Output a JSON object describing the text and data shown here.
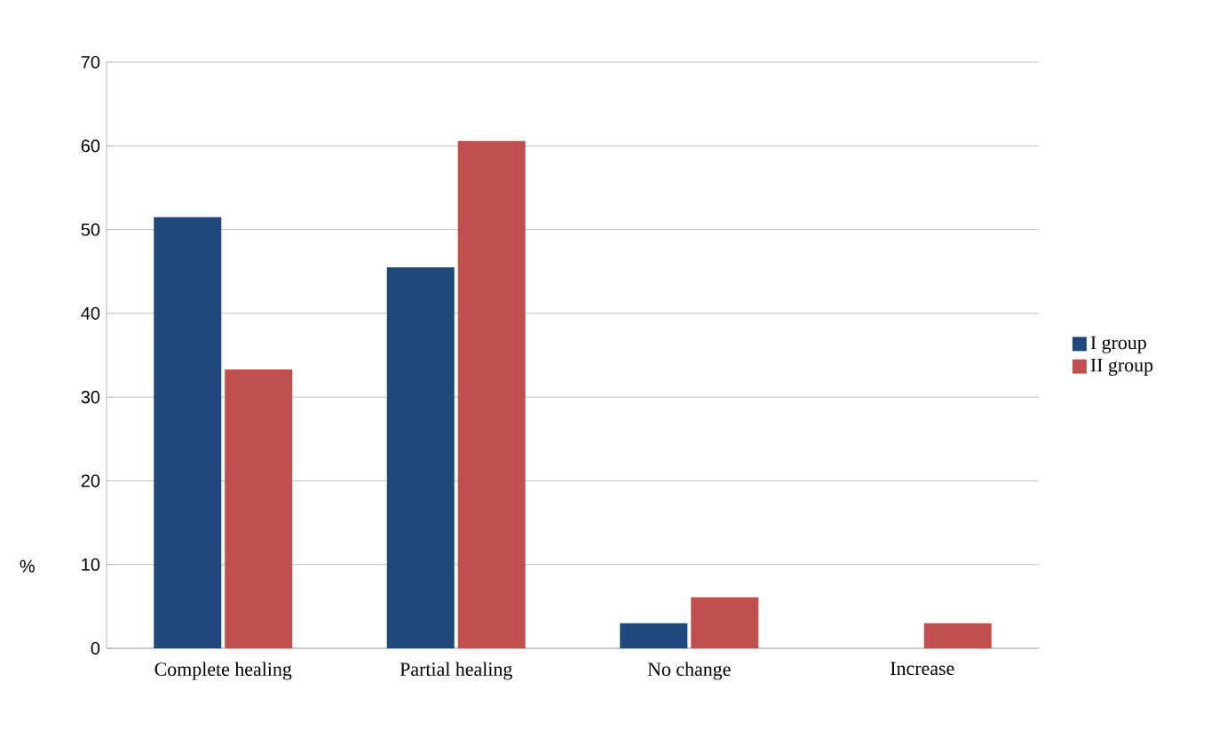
{
  "chart_data": {
    "type": "bar",
    "ylabel": "%",
    "categories": [
      "Complete healing",
      "Partial  healing",
      "No change",
      "Increase"
    ],
    "series": [
      {
        "name": "I group",
        "color": "#1f497d",
        "values": [
          51.5,
          45.5,
          3.0,
          null
        ]
      },
      {
        "name": "II group",
        "color": "#c0504d",
        "values": [
          33.3,
          60.6,
          6.1,
          3.0
        ]
      }
    ],
    "ylim": [
      0,
      70
    ],
    "yticks": [
      0,
      10,
      20,
      30,
      40,
      50,
      60,
      70
    ],
    "grid": "y",
    "legend": "right"
  }
}
